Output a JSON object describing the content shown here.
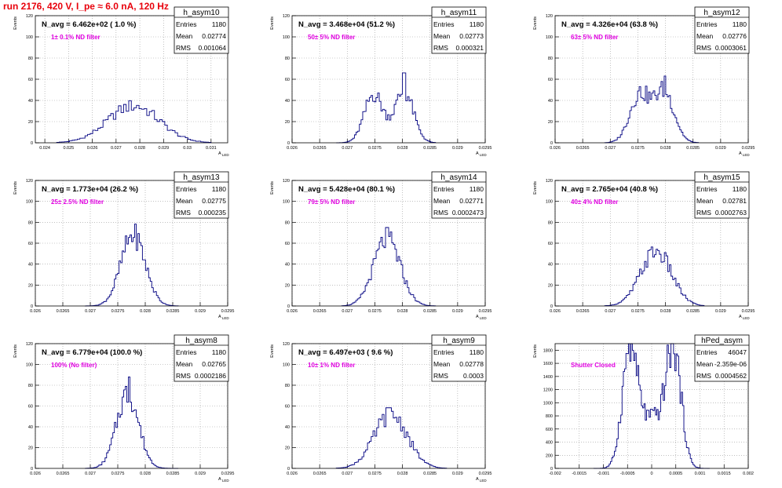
{
  "page": {
    "title": "run 2176,   420 V, I_pe ≈ 6.0 nA, 120 Hz"
  },
  "chart_data": [
    {
      "type": "bar",
      "hist": "h_asym10",
      "stats": {
        "entries": "1180",
        "mean": "0.02774",
        "rms": "0.001064"
      },
      "n_avg": "N_avg = 6.462e+02 ( 1.0 %)",
      "filter": "1± 0.1% ND filter",
      "xlabel": "A_LED",
      "ylabel": "Events",
      "xlim": [
        0.0236,
        0.0317
      ],
      "ylim": [
        0,
        120
      ],
      "xticks": [
        "0.024",
        "0.025",
        "0.026",
        "0.027",
        "0.028",
        "0.029",
        "0.03",
        "0.031"
      ],
      "xtickvals": [
        0.024,
        0.025,
        0.026,
        0.027,
        0.028,
        0.029,
        0.03,
        0.031
      ],
      "yticks": [
        "0",
        "20",
        "40",
        "60",
        "80",
        "100",
        "120"
      ],
      "ytickvals": [
        0,
        20,
        40,
        60,
        80,
        100,
        120
      ],
      "mode": "gauss",
      "mu": 0.02774,
      "sigma": 0.00108,
      "peak": 35,
      "bins": 60,
      "range": [
        0.0245,
        0.031
      ]
    },
    {
      "type": "bar",
      "hist": "h_asym11",
      "stats": {
        "entries": "1180",
        "mean": "0.02773",
        "rms": "0.000321"
      },
      "n_avg": "N_avg = 3.468e+04 (51.2 %)",
      "filter": "50± 5% ND filter",
      "xlabel": "A_LED",
      "ylabel": "Events",
      "xlim": [
        0.026,
        0.0295
      ],
      "ylim": [
        0,
        120
      ],
      "xticks": [
        "0.026",
        "0.0265",
        "0.027",
        "0.0275",
        "0.028",
        "0.0285",
        "0.029",
        "0.0295"
      ],
      "xtickvals": [
        0.026,
        0.0265,
        0.027,
        0.0275,
        0.028,
        0.0285,
        0.029,
        0.0295
      ],
      "yticks": [
        "0",
        "20",
        "40",
        "60",
        "80",
        "100",
        "120"
      ],
      "ytickvals": [
        0,
        20,
        40,
        60,
        80,
        100,
        120
      ],
      "mode": "double",
      "mu1": 0.02748,
      "mu2": 0.02803,
      "sigma": 0.00017,
      "peak": 48,
      "spike": [
        0.02803,
        66
      ],
      "bins": 60,
      "range": [
        0.0268,
        0.0286
      ]
    },
    {
      "type": "bar",
      "hist": "h_asym12",
      "stats": {
        "entries": "1180",
        "mean": "0.02776",
        "rms": "0.0003061"
      },
      "n_avg": "N_avg = 4.326e+04 (63.8 %)",
      "filter": "63± 5% ND filter",
      "xlabel": "A_LED",
      "ylabel": "Events",
      "xlim": [
        0.026,
        0.0295
      ],
      "ylim": [
        0,
        120
      ],
      "xticks": [
        "0.026",
        "0.0265",
        "0.027",
        "0.0275",
        "0.028",
        "0.0285",
        "0.029",
        "0.0295"
      ],
      "xtickvals": [
        0.026,
        0.0265,
        0.027,
        0.0275,
        0.028,
        0.0285,
        0.029,
        0.0295
      ],
      "yticks": [
        "0",
        "20",
        "40",
        "60",
        "80",
        "100",
        "120"
      ],
      "ytickvals": [
        0,
        20,
        40,
        60,
        80,
        100,
        120
      ],
      "mode": "double",
      "mu1": 0.02753,
      "mu2": 0.02798,
      "sigma": 0.00018,
      "peak": 48,
      "spike": [
        0.02798,
        63
      ],
      "bins": 60,
      "range": [
        0.0269,
        0.0286
      ]
    },
    {
      "type": "bar",
      "hist": "h_asym13",
      "stats": {
        "entries": "1180",
        "mean": "0.02775",
        "rms": "0.000235"
      },
      "n_avg": "N_avg = 1.773e+04 (26.2 %)",
      "filter": "25± 2.5% ND filter",
      "xlabel": "A_LED",
      "ylabel": "Events",
      "xlim": [
        0.026,
        0.0295
      ],
      "ylim": [
        0,
        120
      ],
      "xticks": [
        "0.026",
        "0.0265",
        "0.027",
        "0.0275",
        "0.028",
        "0.0285",
        "0.029",
        "0.0295"
      ],
      "xtickvals": [
        0.026,
        0.0265,
        0.027,
        0.0275,
        0.028,
        0.0285,
        0.029,
        0.0295
      ],
      "yticks": [
        "0",
        "20",
        "40",
        "60",
        "80",
        "100",
        "120"
      ],
      "ytickvals": [
        0,
        20,
        40,
        60,
        80,
        100,
        120
      ],
      "mode": "gauss",
      "mu": 0.02778,
      "sigma": 0.00022,
      "peak": 68,
      "bins": 60,
      "range": [
        0.0269,
        0.0286
      ]
    },
    {
      "type": "bar",
      "hist": "h_asym14",
      "stats": {
        "entries": "1180",
        "mean": "0.02771",
        "rms": "0.0002473"
      },
      "n_avg": "N_avg = 5.428e+04 (80.1 %)",
      "filter": "79± 5% ND filter",
      "xlabel": "A_LED",
      "ylabel": "Events",
      "xlim": [
        0.026,
        0.0295
      ],
      "ylim": [
        0,
        120
      ],
      "xticks": [
        "0.026",
        "0.0265",
        "0.027",
        "0.0275",
        "0.028",
        "0.0285",
        "0.029",
        "0.0295"
      ],
      "xtickvals": [
        0.026,
        0.0265,
        0.027,
        0.0275,
        0.028,
        0.0285,
        0.029,
        0.0295
      ],
      "yticks": [
        "0",
        "20",
        "40",
        "60",
        "80",
        "100",
        "120"
      ],
      "ytickvals": [
        0,
        20,
        40,
        60,
        80,
        100,
        120
      ],
      "mode": "gauss",
      "mu": 0.02772,
      "sigma": 0.00024,
      "peak": 64,
      "spike": [
        0.02772,
        75
      ],
      "bins": 60,
      "range": [
        0.0269,
        0.0286
      ]
    },
    {
      "type": "bar",
      "hist": "h_asym15",
      "stats": {
        "entries": "1180",
        "mean": "0.02781",
        "rms": "0.0002763"
      },
      "n_avg": "N_avg = 2.765e+04 (40.8 %)",
      "filter": "40± 4% ND filter",
      "xlabel": "A_LED",
      "ylabel": "Events",
      "xlim": [
        0.026,
        0.0295
      ],
      "ylim": [
        0,
        120
      ],
      "xticks": [
        "0.026",
        "0.0265",
        "0.027",
        "0.0275",
        "0.028",
        "0.0285",
        "0.029",
        "0.0295"
      ],
      "xtickvals": [
        0.026,
        0.0265,
        0.027,
        0.0275,
        0.028,
        0.0285,
        0.029,
        0.0295
      ],
      "yticks": [
        "0",
        "20",
        "40",
        "60",
        "80",
        "100",
        "120"
      ],
      "ytickvals": [
        0,
        20,
        40,
        60,
        80,
        100,
        120
      ],
      "mode": "gauss",
      "mu": 0.02783,
      "sigma": 0.00028,
      "peak": 52,
      "bins": 60,
      "range": [
        0.0269,
        0.0287
      ]
    },
    {
      "type": "bar",
      "hist": "h_asym8",
      "stats": {
        "entries": "1180",
        "mean": "0.02765",
        "rms": "0.0002186"
      },
      "n_avg": "N_avg = 6.779e+04 (100.0 %)",
      "filter": "100% (No filter)",
      "xlabel": "A_LED",
      "ylabel": "Events",
      "xlim": [
        0.026,
        0.0295
      ],
      "ylim": [
        0,
        120
      ],
      "xticks": [
        "0.026",
        "0.0265",
        "0.027",
        "0.0275",
        "0.028",
        "0.0285",
        "0.029",
        "0.0295"
      ],
      "xtickvals": [
        0.026,
        0.0265,
        0.027,
        0.0275,
        0.028,
        0.0285,
        0.029,
        0.0295
      ],
      "yticks": [
        "0",
        "20",
        "40",
        "60",
        "80",
        "100",
        "120"
      ],
      "ytickvals": [
        0,
        20,
        40,
        60,
        80,
        100,
        120
      ],
      "mode": "gauss",
      "mu": 0.02768,
      "sigma": 0.0002,
      "peak": 72,
      "spike": [
        0.0277,
        88
      ],
      "bins": 60,
      "range": [
        0.0269,
        0.0286
      ]
    },
    {
      "type": "bar",
      "hist": "h_asym9",
      "stats": {
        "entries": "1180",
        "mean": "0.02778",
        "rms": "0.0003"
      },
      "n_avg": "N_avg = 6.497e+03 ( 9.6 %)",
      "filter": "10± 1% ND filter",
      "xlabel": "A_LED",
      "ylabel": "Events",
      "xlim": [
        0.026,
        0.0295
      ],
      "ylim": [
        0,
        120
      ],
      "xticks": [
        "0.026",
        "0.0265",
        "0.027",
        "0.0275",
        "0.028",
        "0.0285",
        "0.029",
        "0.0295"
      ],
      "xtickvals": [
        0.026,
        0.0265,
        0.027,
        0.0275,
        0.028,
        0.0285,
        0.029,
        0.0295
      ],
      "yticks": [
        "0",
        "20",
        "40",
        "60",
        "80",
        "100",
        "120"
      ],
      "ytickvals": [
        0,
        20,
        40,
        60,
        80,
        100,
        120
      ],
      "mode": "gauss",
      "mu": 0.02779,
      "sigma": 0.0003,
      "peak": 52,
      "bins": 60,
      "range": [
        0.0268,
        0.0288
      ]
    },
    {
      "type": "bar",
      "hist": "hPed_asym",
      "stats": {
        "entries": "46047",
        "mean": "-2.359e-06",
        "rms": "0.0004562"
      },
      "n_avg": "",
      "filter": "Shutter Closed",
      "xlabel": "",
      "ylabel": "Events",
      "xlim": [
        -0.002,
        0.002
      ],
      "ylim": [
        0,
        1900
      ],
      "xticks": [
        "-0.002",
        "-0.0015",
        "-0.001",
        "-0.0005",
        "0",
        "0.0005",
        "0.001",
        "0.0015",
        "0.002"
      ],
      "xtickvals": [
        -0.002,
        -0.0015,
        -0.001,
        -0.0005,
        0,
        0.0005,
        0.001,
        0.0015,
        0.002
      ],
      "yticks": [
        "0",
        "200",
        "400",
        "600",
        "800",
        "1000",
        "1200",
        "1400",
        "1600",
        "1800"
      ],
      "ytickvals": [
        0,
        200,
        400,
        600,
        800,
        1000,
        1200,
        1400,
        1600,
        1800
      ],
      "mode": "ped",
      "mu1": -0.00045,
      "mu2": 0.00045,
      "sigma": 0.00016,
      "peak": 1800,
      "bins": 90,
      "range": [
        -0.0012,
        0.0012
      ]
    }
  ]
}
